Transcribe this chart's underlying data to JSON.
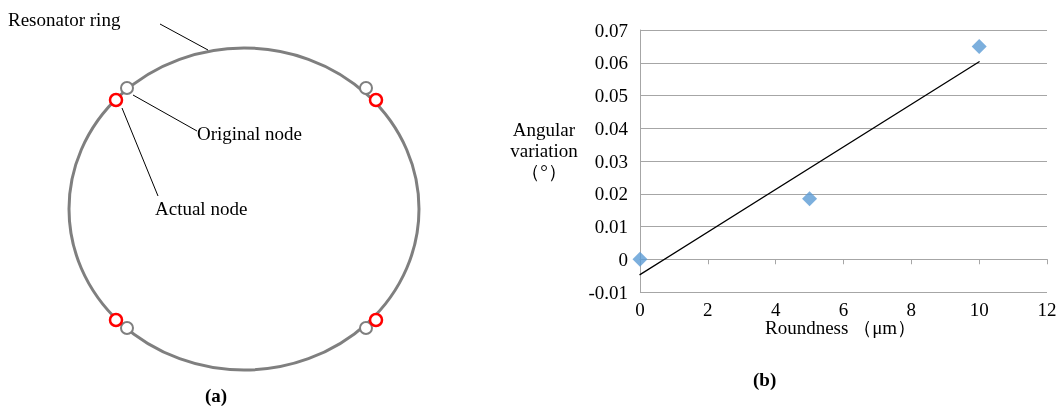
{
  "chart_data": [
    {
      "type": "other",
      "annotations": [
        "Resonator ring",
        "Original node",
        "Actual node",
        "(a)"
      ]
    },
    {
      "type": "scatter",
      "xlabel": "Roundness （μm）",
      "ylabel": "Angular variation（°）",
      "annotations": [
        "(b)"
      ],
      "xlim": [
        0,
        12
      ],
      "xticks": [
        0,
        2,
        4,
        6,
        8,
        10,
        12
      ],
      "ylim": [
        -0.01,
        0.07
      ],
      "yticks": [
        -0.01,
        0,
        0.01,
        0.02,
        0.03,
        0.04,
        0.05,
        0.06,
        0.07
      ],
      "grid": "y",
      "marker": "diamond",
      "series": [
        {
          "type": "scatter",
          "color": "#5b9bd5",
          "x": [
            0,
            5,
            10
          ],
          "values": [
            0,
            0.0185,
            0.065
          ]
        },
        {
          "type": "line",
          "color": "#000000",
          "marker": "none",
          "line_style": "solid",
          "x": [
            0,
            10
          ],
          "values": [
            -0.0047,
            0.0603
          ]
        }
      ]
    }
  ]
}
